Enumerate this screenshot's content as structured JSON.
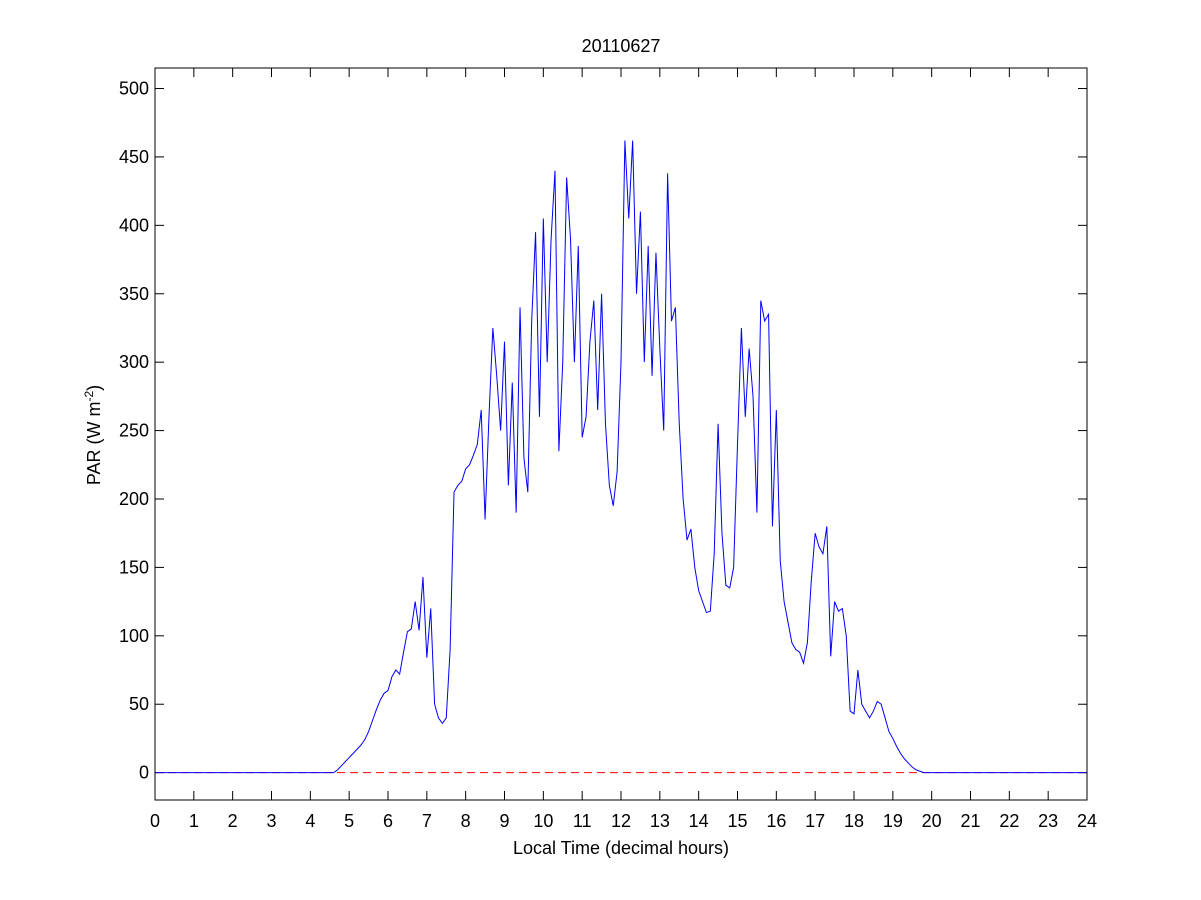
{
  "chart_data": {
    "type": "line",
    "title": "20110627",
    "xlabel": "Local Time (decimal hours)",
    "ylabel_parts": [
      "PAR (W m",
      "-2",
      ")"
    ],
    "x": [
      0,
      1,
      2,
      3,
      4,
      4.5,
      4.6,
      4.7,
      4.8,
      4.9,
      5.0,
      5.1,
      5.2,
      5.3,
      5.4,
      5.5,
      5.6,
      5.7,
      5.8,
      5.9,
      6.0,
      6.1,
      6.2,
      6.3,
      6.4,
      6.5,
      6.6,
      6.7,
      6.8,
      6.9,
      7.0,
      7.1,
      7.2,
      7.3,
      7.4,
      7.5,
      7.6,
      7.7,
      7.8,
      7.9,
      8.0,
      8.1,
      8.2,
      8.3,
      8.4,
      8.5,
      8.6,
      8.7,
      8.8,
      8.9,
      9.0,
      9.1,
      9.2,
      9.3,
      9.4,
      9.5,
      9.6,
      9.7,
      9.8,
      9.9,
      10.0,
      10.1,
      10.2,
      10.3,
      10.4,
      10.5,
      10.6,
      10.7,
      10.8,
      10.9,
      11.0,
      11.1,
      11.2,
      11.3,
      11.4,
      11.5,
      11.6,
      11.7,
      11.8,
      11.9,
      12.0,
      12.1,
      12.2,
      12.3,
      12.4,
      12.5,
      12.6,
      12.7,
      12.8,
      12.9,
      13.0,
      13.1,
      13.2,
      13.3,
      13.4,
      13.5,
      13.6,
      13.7,
      13.8,
      13.9,
      14.0,
      14.1,
      14.2,
      14.3,
      14.4,
      14.5,
      14.6,
      14.7,
      14.8,
      14.9,
      15.0,
      15.1,
      15.2,
      15.3,
      15.4,
      15.5,
      15.6,
      15.7,
      15.8,
      15.9,
      16.0,
      16.1,
      16.2,
      16.3,
      16.4,
      16.5,
      16.6,
      16.7,
      16.8,
      16.9,
      17.0,
      17.1,
      17.2,
      17.3,
      17.4,
      17.5,
      17.6,
      17.7,
      17.8,
      17.9,
      18.0,
      18.1,
      18.2,
      18.3,
      18.4,
      18.5,
      18.6,
      18.7,
      18.8,
      18.9,
      19.0,
      19.1,
      19.2,
      19.3,
      19.4,
      19.5,
      19.6,
      19.7,
      19.8,
      19.9,
      20.0,
      21,
      22,
      23,
      24
    ],
    "series": [
      {
        "color": "#0000ff",
        "values": [
          0,
          0,
          0,
          0,
          0,
          0,
          0,
          2,
          5,
          8,
          11,
          14,
          17,
          20,
          24,
          30,
          38,
          46,
          53,
          58,
          60,
          70,
          75,
          72,
          88,
          103,
          105,
          125,
          104,
          143,
          84,
          120,
          50,
          40,
          36,
          40,
          90,
          205,
          210,
          213,
          222,
          225,
          232,
          240,
          265,
          185,
          260,
          325,
          290,
          250,
          315,
          210,
          285,
          190,
          340,
          230,
          205,
          330,
          395,
          260,
          405,
          300,
          390,
          440,
          235,
          300,
          435,
          390,
          300,
          385,
          245,
          260,
          315,
          345,
          265,
          350,
          255,
          210,
          195,
          220,
          300,
          462,
          405,
          462,
          350,
          410,
          300,
          385,
          290,
          380,
          310,
          250,
          438,
          330,
          340,
          255,
          200,
          170,
          178,
          150,
          133,
          125,
          117,
          118,
          160,
          255,
          175,
          137,
          135,
          150,
          240,
          325,
          260,
          310,
          275,
          190,
          345,
          330,
          335,
          180,
          265,
          155,
          125,
          110,
          95,
          90,
          88,
          80,
          95,
          140,
          175,
          165,
          160,
          180,
          85,
          125,
          118,
          120,
          100,
          45,
          43,
          75,
          50,
          45,
          40,
          45,
          52,
          50,
          40,
          30,
          25,
          19,
          14,
          10,
          7,
          4,
          2,
          1,
          0,
          0,
          0,
          0,
          0,
          0,
          0
        ]
      }
    ],
    "reference_line": {
      "y": 0,
      "color": "#ff0000",
      "style": "dashed"
    },
    "xlim": [
      0,
      24
    ],
    "xticks": [
      0,
      1,
      2,
      3,
      4,
      5,
      6,
      7,
      8,
      9,
      10,
      11,
      12,
      13,
      14,
      15,
      16,
      17,
      18,
      19,
      20,
      21,
      22,
      23,
      24
    ],
    "ylim": [
      -20,
      515
    ],
    "yticks": [
      0,
      50,
      100,
      150,
      200,
      250,
      300,
      350,
      400,
      450,
      500
    ],
    "grid": false
  }
}
